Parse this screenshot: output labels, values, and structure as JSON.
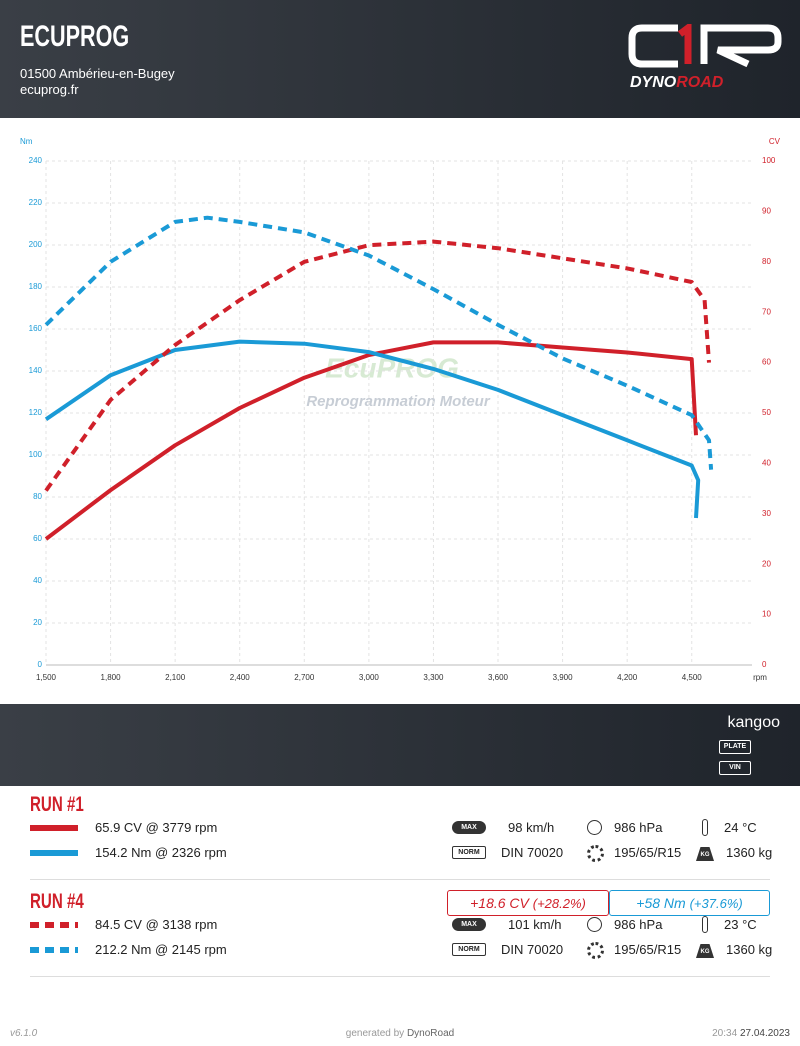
{
  "header": {
    "title": "ECUPROG",
    "address": "01500 Ambérieu-en-Bugey",
    "website": "ecuprog.fr",
    "logo": [
      "DYNO",
      "ROAD"
    ]
  },
  "chart_data": {
    "type": "line",
    "x_label": "rpm",
    "y_label": "Nm",
    "y2_label": "CV",
    "xlim": [
      1500,
      4780
    ],
    "xticks": [
      {
        "value": 1500,
        "label": "1,500"
      },
      {
        "value": 1800,
        "label": "1,800"
      },
      {
        "value": 2100,
        "label": "2,100"
      },
      {
        "value": 2400,
        "label": "2,400"
      },
      {
        "value": 2700,
        "label": "2,700"
      },
      {
        "value": 3000,
        "label": "3,000"
      },
      {
        "value": 3300,
        "label": "3,300"
      },
      {
        "value": 3600,
        "label": "3,600"
      },
      {
        "value": 3900,
        "label": "3,900"
      },
      {
        "value": 4200,
        "label": "4,200"
      },
      {
        "value": 4500,
        "label": "4,500"
      }
    ],
    "ylim": [
      0,
      240
    ],
    "yticks": [
      0,
      20,
      40,
      60,
      80,
      100,
      120,
      140,
      160,
      180,
      200,
      220,
      240
    ],
    "y2lim": [
      0,
      100
    ],
    "y2ticks": [
      0,
      10,
      20,
      30,
      40,
      50,
      60,
      70,
      80,
      90,
      100
    ],
    "grid": true,
    "watermark": [
      "EcuPROG",
      "Reprogrammation Moteur"
    ],
    "series": [
      {
        "name": "65.9 CV @ 3779 rpm",
        "color": "#d0202a",
        "axis": "y2",
        "dashed": false,
        "x": [
          1500,
          1800,
          2100,
          2400,
          2700,
          3000,
          3300,
          3600,
          3900,
          4200,
          4500,
          4520
        ],
        "values": [
          25,
          34.7,
          43.6,
          51,
          57,
          61.5,
          64,
          64,
          63,
          62,
          60.7,
          45.6
        ]
      },
      {
        "name": "154.2 Nm @ 2326 rpm",
        "color": "#1a9ad6",
        "axis": "y",
        "dashed": false,
        "x": [
          1500,
          1800,
          2100,
          2400,
          2700,
          3000,
          3300,
          3600,
          3900,
          4200,
          4500,
          4530,
          4520
        ],
        "values": [
          117,
          138,
          150,
          154,
          153,
          149,
          141,
          131,
          119,
          107,
          95,
          88,
          70
        ]
      },
      {
        "name": "84.5 CV @ 3138 rpm",
        "color": "#d0202a",
        "axis": "y2",
        "dashed": true,
        "x": [
          1500,
          1800,
          2100,
          2400,
          2700,
          3000,
          3300,
          3600,
          3900,
          4200,
          4500,
          4560,
          4580
        ],
        "values": [
          34.6,
          52.6,
          63.5,
          72.4,
          80,
          83.3,
          84,
          82.7,
          80.7,
          78.7,
          76,
          72.4,
          60
        ]
      },
      {
        "name": "212.2 Nm @ 2145 rpm",
        "color": "#1a9ad6",
        "axis": "y",
        "dashed": true,
        "x": [
          1500,
          1800,
          2100,
          2250,
          2400,
          2700,
          3000,
          3300,
          3600,
          3900,
          4200,
          4500,
          4580,
          4590
        ],
        "values": [
          162,
          192,
          211,
          213,
          211,
          206,
          195,
          179,
          162,
          146,
          133,
          119,
          107,
          93
        ]
      }
    ]
  },
  "vehicle": {
    "name": "kangoo",
    "plate": "PLATE",
    "vin": "VIN"
  },
  "runs": [
    {
      "title": "RUN #1",
      "conditions": {
        "max_label": "MAX",
        "max_speed": "98 km/h",
        "pressure": "986 hPa",
        "temperature": "24 °C",
        "norm_label": "NORM",
        "norm": "DIN 70020",
        "tyres": "195/65/R15",
        "weight_label": "KG",
        "weight": "1360 kg"
      }
    },
    {
      "title": "RUN #4",
      "conditions": {
        "max_label": "MAX",
        "max_speed": "101 km/h",
        "pressure": "986 hPa",
        "temperature": "23 °C",
        "norm_label": "NORM",
        "norm": "DIN 70020",
        "tyres": "195/65/R15",
        "weight_label": "KG",
        "weight": "1360 kg"
      }
    }
  ],
  "comparison": {
    "power": "+18.6 CV",
    "power_pct": "(+28.2%)",
    "torque": "+58 Nm",
    "torque_pct": "(+37.6%)"
  },
  "footer": {
    "version": "v6.1.0",
    "generated": "generated by",
    "brand": "DynoRoad",
    "time": "20:34",
    "date": "27.04.2023"
  }
}
